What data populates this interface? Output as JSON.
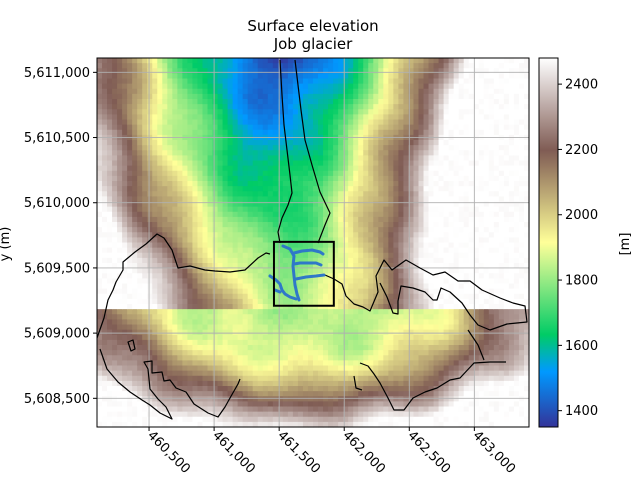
{
  "chart_data": {
    "type": "heatmap",
    "title_lines": [
      "Surface elevation",
      "Job glacier"
    ],
    "xlabel": "",
    "ylabel": "y (m)",
    "colorbar_label": "[m]",
    "colormap": "terrain",
    "xlim": [
      460100,
      463420
    ],
    "ylim": [
      5608280,
      5611110
    ],
    "x_ticks": [
      460500,
      461000,
      461500,
      462000,
      462500,
      463000
    ],
    "x_tick_labels": [
      "460,500",
      "461,000",
      "461,500",
      "462,000",
      "462,500",
      "463,000"
    ],
    "y_ticks": [
      5608500,
      5609000,
      5609500,
      5610000,
      5610500,
      5611000
    ],
    "y_tick_labels": [
      "5,608,500",
      "5,609,000",
      "5,609,500",
      "5,610,000",
      "5,610,500",
      "5,611,000"
    ],
    "clim": [
      1350,
      2480
    ],
    "colorbar_ticks": [
      1400,
      1600,
      1800,
      2000,
      2200,
      2400
    ],
    "colorbar_tick_labels": [
      "1400",
      "1600",
      "1800",
      "2000",
      "2200",
      "2400"
    ],
    "grid": true,
    "zoom_box": {
      "x": [
        461460,
        461920
      ],
      "y": [
        5609210,
        5609700
      ]
    },
    "colors": {
      "outline": "#000000",
      "streams": "#2f78c8",
      "grid": "#b0b0b0"
    }
  }
}
